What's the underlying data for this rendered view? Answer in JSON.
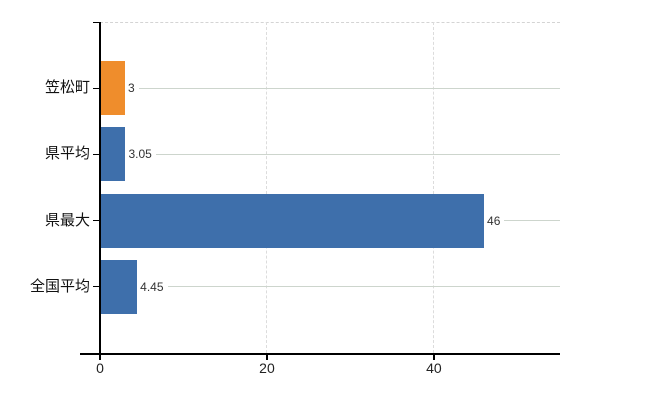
{
  "chart_data": {
    "type": "bar",
    "orientation": "horizontal",
    "title": "",
    "xlabel": "",
    "ylabel": "",
    "categories": [
      "笠松町",
      "県平均",
      "県最大",
      "全国平均"
    ],
    "values": [
      3,
      3.05,
      46,
      4.45
    ],
    "value_labels": [
      "3",
      "3.05",
      "46",
      "4.45"
    ],
    "bar_colors": [
      "#ef8d2c",
      "#3e6fab",
      "#3e6fab",
      "#3e6fab"
    ],
    "xticks": [
      0,
      20,
      40
    ],
    "xtick_labels": [
      "0",
      "20",
      "40"
    ],
    "xlim": [
      0,
      55.1
    ],
    "grid": true,
    "legend": null,
    "colors": {
      "axis": "#000000",
      "vertical_grid": "#dcdcdc",
      "row_line": "#cdd5cd",
      "top_border": "#d4d4d4",
      "value_text": "#333333",
      "tick_text": "#222222",
      "category_text": "#111111",
      "background": "#ffffff"
    }
  }
}
